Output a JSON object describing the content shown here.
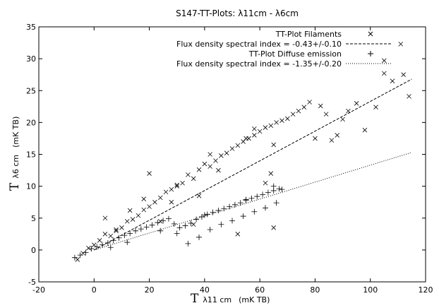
{
  "chart_data": {
    "type": "scatter",
    "title": "S147-TT-Plots: λ11cm - λ6cm",
    "xlabel": {
      "symbol": "T",
      "sub": "λ11 cm",
      "unit": "(mK TB)"
    },
    "ylabel": {
      "symbol": "T",
      "sub": "λ6 cm",
      "unit": "(mK TB)"
    },
    "xlim": [
      -20,
      120
    ],
    "ylim": [
      -5,
      35
    ],
    "xticks": [
      "-20",
      "0",
      "20",
      "40",
      "60",
      "80",
      "100",
      "120"
    ],
    "yticks": [
      "-5",
      "0",
      "5",
      "10",
      "15",
      "20",
      "25",
      "30",
      "35"
    ],
    "grid": false,
    "legend_position": "top-right",
    "series": [
      {
        "name": "TT-Plot Filaments",
        "kind": "scatter",
        "marker": "x",
        "x": [
          -6,
          -4,
          -2,
          0,
          2,
          4,
          6,
          8,
          10,
          12,
          14,
          16,
          18,
          20,
          22,
          24,
          26,
          28,
          30,
          32,
          34,
          36,
          38,
          40,
          42,
          44,
          46,
          48,
          50,
          52,
          54,
          56,
          58,
          60,
          62,
          64,
          66,
          68,
          70,
          72,
          74,
          76,
          78,
          80,
          82,
          84,
          86,
          88,
          90,
          92,
          95,
          98,
          102,
          105,
          105,
          108,
          111,
          112,
          114,
          13,
          20,
          28,
          36,
          45,
          55,
          62,
          65,
          52,
          8,
          18,
          30,
          42,
          58,
          65,
          4,
          24,
          38,
          64
        ],
        "y": [
          -1.5,
          -0.5,
          0.3,
          0.8,
          1.5,
          2.5,
          2.2,
          3.2,
          3.5,
          4.5,
          4.8,
          5.4,
          6.3,
          6.8,
          7.5,
          8.2,
          9.1,
          9.5,
          10.2,
          10.5,
          11.8,
          11.2,
          12.6,
          13.5,
          13.1,
          14.0,
          14.8,
          15.2,
          15.9,
          16.4,
          17.0,
          17.5,
          18.0,
          18.6,
          19.2,
          19.5,
          20.0,
          20.3,
          20.6,
          21.3,
          21.8,
          22.4,
          23.2,
          17.5,
          22.6,
          21.3,
          17.2,
          18.0,
          20.5,
          21.8,
          23.0,
          18.8,
          22.4,
          29.7,
          27.7,
          26.5,
          32.3,
          27.5,
          24.1,
          6.2,
          12.0,
          7.5,
          4.0,
          12.5,
          17.5,
          10.5,
          3.5,
          2.5,
          3.0,
          8.0,
          10.0,
          15.0,
          19.0,
          16.5,
          5.0,
          4.5,
          8.5,
          12.0
        ]
      },
      {
        "name": "Flux density spectral index = -0.43+/-0.10",
        "kind": "line",
        "style": "dashed",
        "x": [
          0,
          115
        ],
        "y": [
          0,
          26.8
        ]
      },
      {
        "name": "TT-Plot Diffuse emission",
        "kind": "scatter",
        "marker": "+",
        "x": [
          -7,
          -5,
          -3,
          -1,
          1,
          3,
          5,
          7,
          9,
          11,
          13,
          15,
          17,
          19,
          21,
          23,
          25,
          27,
          29,
          31,
          33,
          35,
          37,
          39,
          41,
          43,
          45,
          47,
          49,
          51,
          53,
          55,
          57,
          59,
          61,
          63,
          65,
          67,
          68,
          34,
          38,
          42,
          46,
          50,
          54,
          58,
          62,
          66,
          30,
          40,
          55,
          65,
          12,
          6,
          24
        ],
        "y": [
          -1.2,
          -0.8,
          -0.4,
          0.2,
          0.5,
          0.8,
          1.1,
          1.5,
          1.9,
          2.3,
          2.6,
          3.0,
          3.3,
          3.6,
          3.9,
          4.3,
          4.6,
          4.9,
          4.1,
          3.5,
          3.8,
          4.2,
          4.8,
          5.2,
          5.6,
          5.9,
          6.2,
          6.5,
          6.8,
          7.1,
          7.4,
          7.8,
          8.1,
          8.4,
          8.7,
          9.0,
          9.3,
          9.6,
          9.5,
          1.0,
          2.0,
          3.2,
          4.0,
          4.6,
          5.3,
          6.0,
          6.6,
          7.4,
          2.6,
          5.5,
          7.9,
          10.0,
          1.2,
          0.4,
          3.0
        ]
      },
      {
        "name": "Flux density spectral index = -1.35+/-0.20",
        "kind": "line",
        "style": "dotted",
        "x": [
          0,
          115
        ],
        "y": [
          0,
          15.3
        ]
      }
    ]
  }
}
